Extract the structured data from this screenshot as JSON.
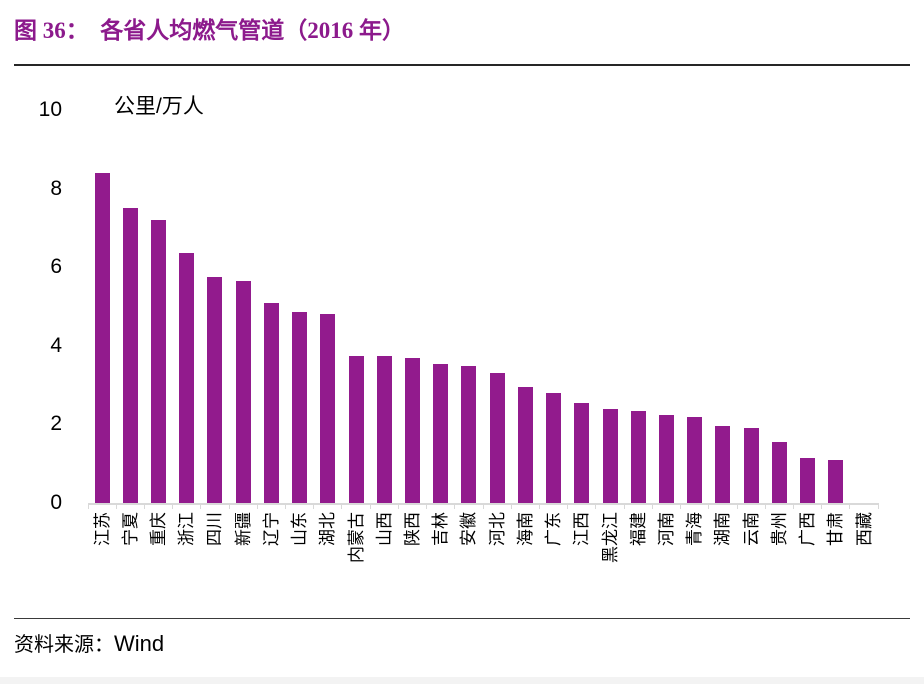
{
  "header": {
    "title": "图 36：  各省人均燃气管道（2016 年）"
  },
  "footer": {
    "source_label": "资料来源：",
    "source_value": "Wind"
  },
  "colors": {
    "bar": "#921B8D",
    "title": "#8C1A8C",
    "axis_line": "#D9D9D9",
    "text": "#000000"
  },
  "chart_data": {
    "type": "bar",
    "title": "各省人均燃气管道（2016 年）",
    "unit": "公里/万人",
    "xlabel": "",
    "ylabel": "公里/万人",
    "ylim": [
      0,
      10
    ],
    "yticks": [
      10,
      8,
      6,
      4,
      2,
      0
    ],
    "grid": false,
    "legend": false,
    "categories": [
      "江苏",
      "宁夏",
      "重庆",
      "浙江",
      "四川",
      "新疆",
      "辽宁",
      "山东",
      "湖北",
      "内蒙古",
      "山西",
      "陕西",
      "吉林",
      "安徽",
      "河北",
      "海南",
      "广东",
      "江西",
      "黑龙江",
      "福建",
      "河南",
      "青海",
      "湖南",
      "云南",
      "贵州",
      "广西",
      "甘肃",
      "西藏"
    ],
    "values": [
      8.4,
      7.5,
      7.2,
      6.35,
      5.75,
      5.65,
      5.1,
      4.85,
      4.8,
      3.75,
      3.75,
      3.7,
      3.55,
      3.5,
      3.3,
      2.95,
      2.8,
      2.55,
      2.4,
      2.35,
      2.25,
      2.2,
      1.95,
      1.9,
      1.55,
      1.15,
      1.1,
      0
    ]
  }
}
